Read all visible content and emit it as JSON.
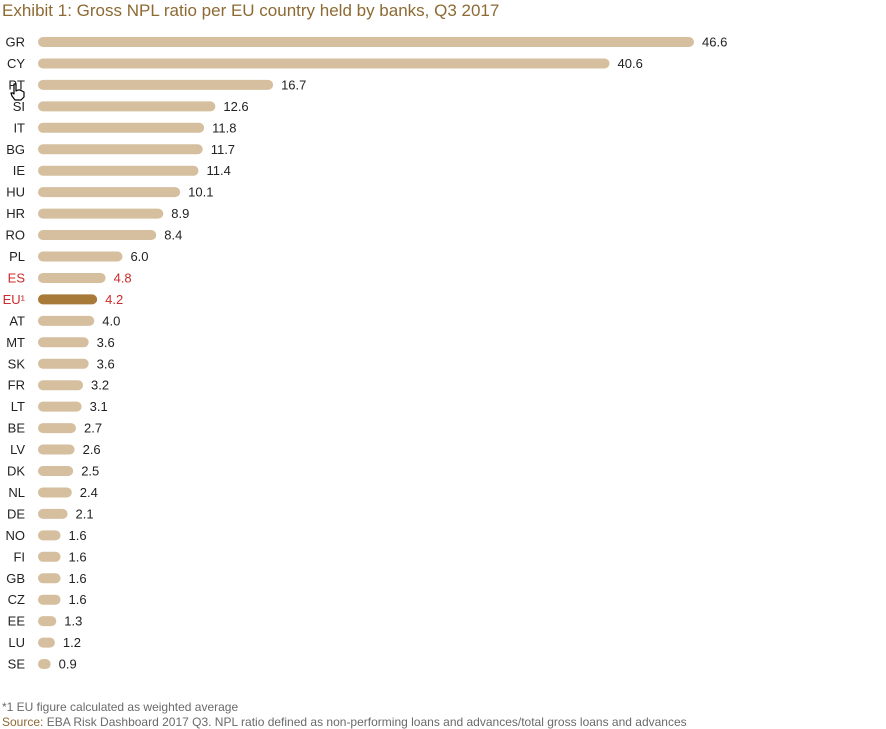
{
  "colors": {
    "bar": "#d6bf9f",
    "highlight_bar": "#a87a3a",
    "highlight_label": "#cc2b2b",
    "label": "#222222",
    "title": "#8d6a33"
  },
  "chart_data": {
    "type": "bar",
    "orientation": "horizontal",
    "title": "Exhibit 1: Gross NPL ratio per EU country held by banks, Q3 2017",
    "xlabel": "",
    "ylabel": "",
    "xlim": [
      0,
      50
    ],
    "grid": false,
    "legend": "none",
    "categories": [
      "GR",
      "CY",
      "PT",
      "SI",
      "IT",
      "BG",
      "IE",
      "HU",
      "HR",
      "RO",
      "PL",
      "ES",
      "EU¹",
      "AT",
      "MT",
      "SK",
      "FR",
      "LT",
      "BE",
      "LV",
      "DK",
      "NL",
      "DE",
      "NO",
      "FI",
      "GB",
      "CZ",
      "EE",
      "LU",
      "SE"
    ],
    "values": [
      46.6,
      40.6,
      16.7,
      12.6,
      11.8,
      11.7,
      11.4,
      10.1,
      8.9,
      8.4,
      6.0,
      4.8,
      4.2,
      4.0,
      3.6,
      3.6,
      3.2,
      3.1,
      2.7,
      2.6,
      2.5,
      2.4,
      2.1,
      1.6,
      1.6,
      1.6,
      1.6,
      1.3,
      1.2,
      0.9
    ],
    "value_labels": [
      "46.6",
      "40.6",
      "16.7",
      "12.6",
      "11.8",
      "11.7",
      "11.4",
      "10.1",
      "8.9",
      "8.4",
      "6.0",
      "4.8",
      "4.2",
      "4.0",
      "3.6",
      "3.6",
      "3.2",
      "3.1",
      "2.7",
      "2.6",
      "2.5",
      "2.4",
      "2.1",
      "1.6",
      "1.6",
      "1.6",
      "1.6",
      "1.3",
      "1.2",
      "0.9"
    ],
    "highlight_labels": [
      "ES",
      "EU¹"
    ],
    "highlight_bars": [
      "EU¹"
    ]
  },
  "footnote": "*1 EU figure calculated as weighted average",
  "source": {
    "label": "Source:",
    "text": "EBA Risk Dashboard 2017 Q3. NPL ratio defined as non-performing loans and advances/total gross loans and advances"
  }
}
